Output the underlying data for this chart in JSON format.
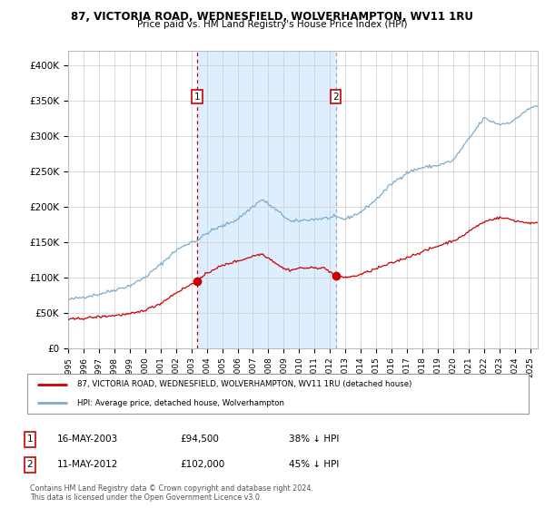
{
  "title1": "87, VICTORIA ROAD, WEDNESFIELD, WOLVERHAMPTON, WV11 1RU",
  "title2": "Price paid vs. HM Land Registry's House Price Index (HPI)",
  "legend_red": "87, VICTORIA ROAD, WEDNESFIELD, WOLVERHAMPTON, WV11 1RU (detached house)",
  "legend_blue": "HPI: Average price, detached house, Wolverhampton",
  "transaction1_date": "16-MAY-2003",
  "transaction1_price": 94500,
  "transaction1_year": 2003.37,
  "transaction2_date": "11-MAY-2012",
  "transaction2_price": 102000,
  "transaction2_year": 2012.37,
  "footer": "Contains HM Land Registry data © Crown copyright and database right 2024.\nThis data is licensed under the Open Government Licence v3.0.",
  "ylim": [
    0,
    420000
  ],
  "xlim_start": 1995.0,
  "xlim_end": 2025.5,
  "background_color": "#ffffff",
  "plot_bg_color": "#ffffff",
  "shade_color": "#ddeeff",
  "red_color": "#cc0000",
  "blue_color": "#7aadcf",
  "grid_color": "#cccccc",
  "vline2_color": "#aaaaaa"
}
